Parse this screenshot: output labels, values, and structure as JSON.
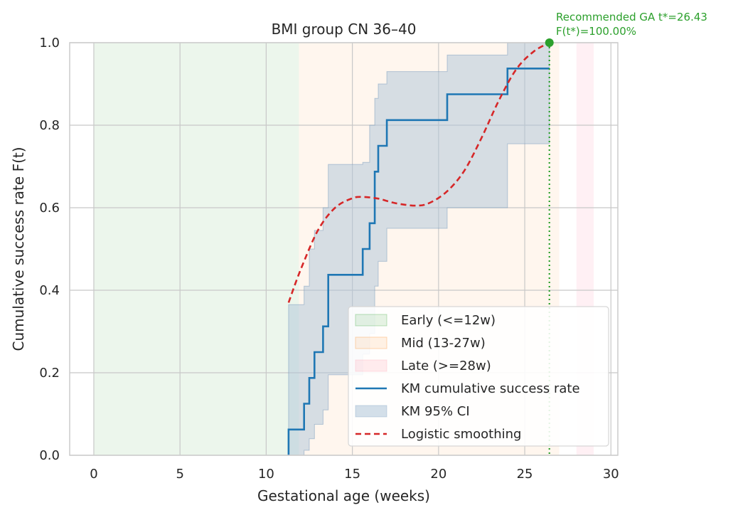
{
  "chart_data": {
    "type": "line",
    "title": "BMI group CN 36–40",
    "xlabel": "Gestational age (weeks)",
    "ylabel": "Cumulative success rate F(t)",
    "xlim": [
      -1.4,
      30.4
    ],
    "ylim": [
      0,
      1
    ],
    "xticks": [
      0,
      5,
      10,
      15,
      20,
      25,
      30
    ],
    "xtick_labels": [
      "0",
      "5",
      "10",
      "15",
      "20",
      "25",
      "30"
    ],
    "yticks": [
      0,
      0.2,
      0.4,
      0.6,
      0.8,
      1.0
    ],
    "ytick_labels": [
      "0.0",
      "0.2",
      "0.4",
      "0.6",
      "0.8",
      "1.0"
    ],
    "grid": true,
    "legend_position": "lower-right",
    "colors": {
      "early": "#2ca02c",
      "mid": "#ff7f0e",
      "late": "#ff9eb0",
      "km": "#1f77b4",
      "ci": "#aec4d8",
      "logistic": "#d62728",
      "recommend": "#2ca02c"
    },
    "regions": [
      {
        "name": "Early (<=12w)",
        "x0": 0,
        "x1": 11.9,
        "color": "#2ca02c",
        "opacity": 0.09
      },
      {
        "name": "Mid (13-27w)",
        "x0": 11.9,
        "x1": 27.0,
        "color": "#ff7f0e",
        "opacity": 0.07
      },
      {
        "name": "Late (>=28w)",
        "x0": 28.0,
        "x1": 29.0,
        "color": "#ff6f8f",
        "opacity": 0.1
      }
    ],
    "series": [
      {
        "name": "KM cumulative success rate",
        "kind": "step",
        "x": [
          11.3,
          11.3,
          12.2,
          12.5,
          12.8,
          13.3,
          13.6,
          15.6,
          16.0,
          16.3,
          16.5,
          17.0,
          20.5,
          24.0,
          26.43
        ],
        "y": [
          0.0,
          0.0625,
          0.125,
          0.1875,
          0.25,
          0.3125,
          0.4375,
          0.5,
          0.5625,
          0.6875,
          0.75,
          0.8125,
          0.875,
          0.9375,
          0.9375
        ]
      },
      {
        "name": "KM 95% CI",
        "kind": "band",
        "x": [
          11.3,
          12.2,
          12.5,
          12.8,
          13.3,
          13.6,
          15.6,
          16.0,
          16.3,
          16.5,
          17.0,
          20.5,
          24.0,
          26.43
        ],
        "lower": [
          0.0,
          0.012,
          0.04,
          0.075,
          0.11,
          0.195,
          0.245,
          0.295,
          0.41,
          0.47,
          0.55,
          0.6,
          0.755,
          0.755
        ],
        "upper": [
          0.365,
          0.41,
          0.5,
          0.545,
          0.6,
          0.705,
          0.71,
          0.8,
          0.865,
          0.9,
          0.93,
          0.97,
          1.0,
          1.0
        ]
      },
      {
        "name": "Logistic smoothing",
        "kind": "dashed",
        "x": [
          11.3,
          12.0,
          13.0,
          14.0,
          15.0,
          15.6,
          16.5,
          17.5,
          18.7,
          19.5,
          20.5,
          21.5,
          22.5,
          23.5,
          24.5,
          25.5,
          26.43
        ],
        "y": [
          0.37,
          0.45,
          0.545,
          0.6,
          0.623,
          0.626,
          0.622,
          0.611,
          0.605,
          0.612,
          0.64,
          0.69,
          0.77,
          0.86,
          0.935,
          0.978,
          1.0
        ]
      }
    ],
    "legend": [
      {
        "label": "Early (<=12w)",
        "kind": "patch",
        "key": "early"
      },
      {
        "label": "Mid (13-27w)",
        "kind": "patch",
        "key": "mid"
      },
      {
        "label": "Late (>=28w)",
        "kind": "patch",
        "key": "late"
      },
      {
        "label": "KM cumulative success rate",
        "kind": "line",
        "key": "km"
      },
      {
        "label": "KM 95% CI",
        "kind": "patch",
        "key": "ci"
      },
      {
        "label": "Logistic smoothing",
        "kind": "dashed",
        "key": "logistic"
      }
    ],
    "recommended": {
      "t": 26.43,
      "F": 1.0,
      "line1": "Recommended GA t*=26.43",
      "line2": "F(t*)=100.00%"
    }
  }
}
